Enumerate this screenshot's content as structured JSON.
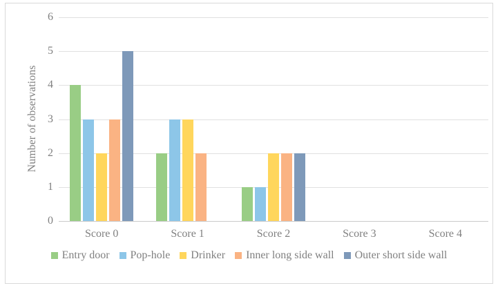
{
  "chart_data": {
    "type": "bar",
    "title": "",
    "categories": [
      "Score 0",
      "Score 1",
      "Score 2",
      "Score 3",
      "Score 4"
    ],
    "series": [
      {
        "name": "Entry door",
        "color": "#99CD85",
        "values": [
          4,
          2,
          1,
          0,
          0
        ]
      },
      {
        "name": "Pop-hole",
        "color": "#8DC6E8",
        "values": [
          3,
          3,
          1,
          0,
          0
        ]
      },
      {
        "name": "Drinker",
        "color": "#FFD65C",
        "values": [
          2,
          3,
          2,
          0,
          0
        ]
      },
      {
        "name": "Inner long side wall",
        "color": "#FAB383",
        "values": [
          3,
          2,
          2,
          0,
          0
        ]
      },
      {
        "name": "Outer short side wall",
        "color": "#7E99B9",
        "values": [
          5,
          0,
          2,
          0,
          0
        ]
      }
    ],
    "xlabel": "",
    "ylabel": "Number of observations",
    "ylim": [
      0,
      6
    ],
    "yticks": [
      0,
      1,
      2,
      3,
      4,
      5,
      6
    ],
    "grid": true,
    "legend_position": "bottom"
  },
  "colors": {
    "axis_text": "#808080",
    "gridline": "#e0e0e0",
    "axis_line": "#c9c9c9",
    "frame_border": "#d9d9d9",
    "background": "#ffffff"
  }
}
